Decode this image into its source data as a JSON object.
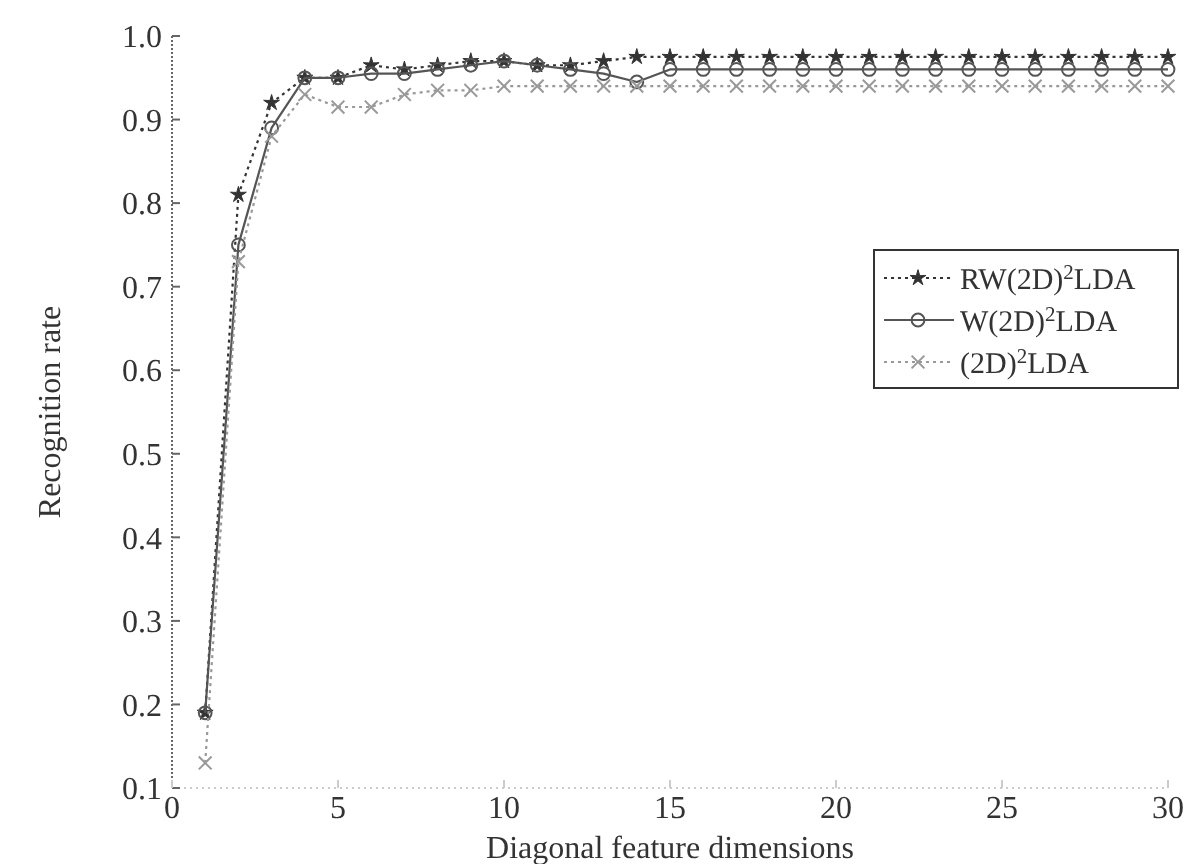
{
  "chart_data": {
    "type": "line",
    "xlabel": "Diagonal feature dimensions",
    "ylabel": "Recognition rate",
    "x": [
      1,
      2,
      3,
      4,
      5,
      6,
      7,
      8,
      9,
      10,
      11,
      12,
      13,
      14,
      15,
      16,
      17,
      18,
      19,
      20,
      21,
      22,
      23,
      24,
      25,
      26,
      27,
      28,
      29,
      30
    ],
    "xlim": [
      0,
      30
    ],
    "xticks": [
      0,
      5,
      10,
      15,
      20,
      25,
      30
    ],
    "ylim": [
      0.1,
      1.0
    ],
    "yticks": [
      0.1,
      0.2,
      0.3,
      0.4,
      0.5,
      0.6,
      0.7,
      0.8,
      0.9,
      {
        "value": 1.0,
        "label": "1.0"
      }
    ],
    "grid": false,
    "legend": "right",
    "series": [
      {
        "name": "RW(2D)$^{2}$LDA",
        "color": "#333333",
        "marker": "star",
        "line_style": "dotted",
        "values": [
          0.19,
          0.81,
          0.92,
          0.95,
          0.95,
          0.965,
          0.96,
          0.965,
          0.97,
          0.97,
          0.965,
          0.965,
          0.97,
          0.975,
          0.975,
          0.975,
          0.975,
          0.975,
          0.975,
          0.975,
          0.975,
          0.975,
          0.975,
          0.975,
          0.975,
          0.975,
          0.975,
          0.975,
          0.975,
          0.975
        ]
      },
      {
        "name": "W(2D)$^{2}$LDA",
        "color": "#555555",
        "marker": "circle",
        "line_style": "solid",
        "values": [
          0.19,
          0.75,
          0.89,
          0.95,
          0.95,
          0.955,
          0.955,
          0.96,
          0.965,
          0.97,
          0.965,
          0.96,
          0.955,
          0.945,
          0.96,
          0.96,
          0.96,
          0.96,
          0.96,
          0.96,
          0.96,
          0.96,
          0.96,
          0.96,
          0.96,
          0.96,
          0.96,
          0.96,
          0.96,
          0.96
        ]
      },
      {
        "name": "(2D)$^{2}$LDA",
        "color": "#999999",
        "marker": "cross",
        "line_style": "dotted",
        "values": [
          0.13,
          0.73,
          0.88,
          0.93,
          0.915,
          0.915,
          0.93,
          0.935,
          0.935,
          0.94,
          0.94,
          0.94,
          0.94,
          0.94,
          0.94,
          0.94,
          0.94,
          0.94,
          0.94,
          0.94,
          0.94,
          0.94,
          0.94,
          0.94,
          0.94,
          0.94,
          0.94,
          0.94,
          0.94,
          0.94
        ]
      }
    ]
  }
}
